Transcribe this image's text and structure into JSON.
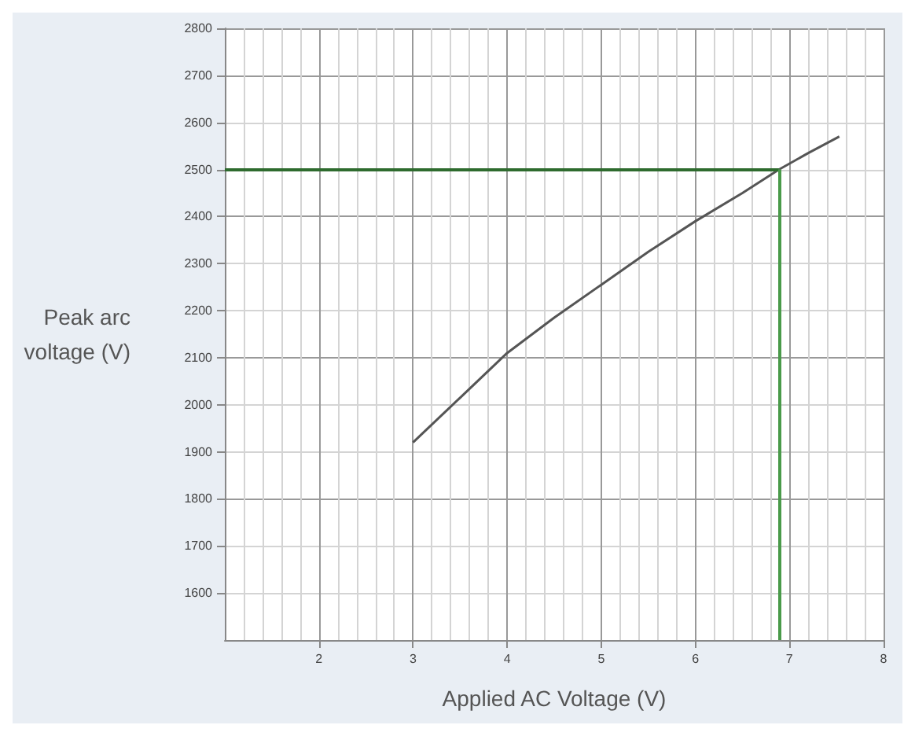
{
  "chart_data": {
    "type": "line",
    "xlabel": "Applied AC Voltage (V)",
    "ylabel": "Peak arc\nvoltage (V)",
    "x": [
      3,
      3.5,
      4,
      4.5,
      5,
      5.5,
      6,
      6.5,
      6.89,
      7.2,
      7.53
    ],
    "series": [
      {
        "color": "#555555",
        "values": [
          1920,
          2015,
          2110,
          2185,
          2255,
          2325,
          2390,
          2450,
          2500,
          2535,
          2570
        ]
      }
    ],
    "xlim": [
      1,
      8
    ],
    "xticks": [
      2,
      3,
      4,
      5,
      6,
      7,
      8
    ],
    "ylim": [
      1500,
      2800
    ],
    "yticks": [
      1600,
      1700,
      1800,
      1900,
      2000,
      2100,
      2200,
      2300,
      2400,
      2500,
      2600,
      2700,
      2800
    ],
    "grid": true,
    "marker": "none",
    "ref_lines": [
      {
        "axis": "y",
        "value": 2500,
        "color": "#2e6b2e"
      },
      {
        "axis": "x",
        "value": 6.89,
        "color": "#4a9a4a"
      }
    ]
  }
}
